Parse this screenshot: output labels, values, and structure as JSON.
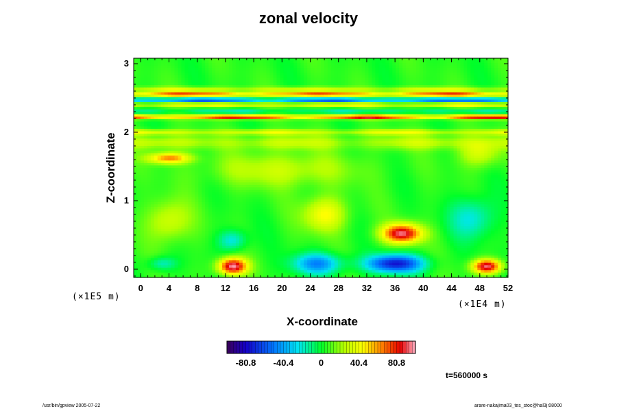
{
  "chart_data": {
    "type": "heatmap",
    "title": "zonal velocity",
    "xlabel": "X-coordinate",
    "ylabel": "Z-coordinate",
    "x_unit": "(×1E4 m)",
    "y_unit": "(×1E5 m)",
    "xlim": [
      -1,
      52
    ],
    "ylim": [
      -0.12,
      3.08
    ],
    "x_ticks": [
      0,
      4,
      8,
      12,
      16,
      20,
      24,
      28,
      32,
      36,
      40,
      44,
      48,
      52
    ],
    "y_ticks": [
      0,
      1,
      2,
      3
    ],
    "colorbar": {
      "ticks": [
        -80.8,
        -40.4,
        0,
        40.4,
        80.8
      ],
      "tick_labels": [
        "-80.8",
        "-40.4",
        "0",
        "40.4",
        "80.8"
      ],
      "range": [
        -101,
        101
      ]
    },
    "background_value": 5,
    "horizontal_bands": [
      {
        "z": 2.55,
        "value": 90,
        "half_width": 0.025
      },
      {
        "z": 2.47,
        "value": -75,
        "half_width": 0.025
      },
      {
        "z": 2.4,
        "value": 45,
        "half_width": 0.025
      },
      {
        "z": 2.22,
        "value": 90,
        "half_width": 0.03
      },
      {
        "z": 2.3,
        "value": -35,
        "half_width": 0.02
      },
      {
        "z": 2.0,
        "value": 35,
        "half_width": 0.04
      },
      {
        "z": 2.62,
        "value": 35,
        "half_width": 0.04
      },
      {
        "z": 1.85,
        "value": 25,
        "half_width": 0.1
      }
    ],
    "features": [
      {
        "x": 13,
        "z": 0.04,
        "value": 95,
        "rx": 2.0,
        "rz": 0.12
      },
      {
        "x": 25,
        "z": 0.08,
        "value": -50,
        "rx": 3.5,
        "rz": 0.15
      },
      {
        "x": 36,
        "z": 0.08,
        "value": -80,
        "rx": 4.0,
        "rz": 0.13
      },
      {
        "x": 49,
        "z": 0.04,
        "value": 90,
        "rx": 2.0,
        "rz": 0.1
      },
      {
        "x": 37,
        "z": 0.52,
        "value": 90,
        "rx": 2.8,
        "rz": 0.14
      },
      {
        "x": 26,
        "z": 0.8,
        "value": 40,
        "rx": 3.0,
        "rz": 0.25
      },
      {
        "x": 4,
        "z": 0.7,
        "value": 30,
        "rx": 3.0,
        "rz": 0.3
      },
      {
        "x": 4,
        "z": 1.62,
        "value": 60,
        "rx": 3.0,
        "rz": 0.08
      },
      {
        "x": 20,
        "z": 1.45,
        "value": 25,
        "rx": 10.0,
        "rz": 0.25
      },
      {
        "x": 13,
        "z": 0.42,
        "value": -30,
        "rx": 2.0,
        "rz": 0.15
      },
      {
        "x": 47,
        "z": 0.75,
        "value": -30,
        "rx": 3.0,
        "rz": 0.3
      },
      {
        "x": 3,
        "z": 0.08,
        "value": -25,
        "rx": 2.0,
        "rz": 0.1
      },
      {
        "x": 48,
        "z": 1.7,
        "value": 30,
        "rx": 3.0,
        "rz": 0.2
      }
    ],
    "annotation": "t=560000 s"
  },
  "footer": {
    "left": "/usr/bin/gpview 2005-07-22",
    "right": "arare-nakajima03_tes_stoc@hal3j:08000"
  }
}
